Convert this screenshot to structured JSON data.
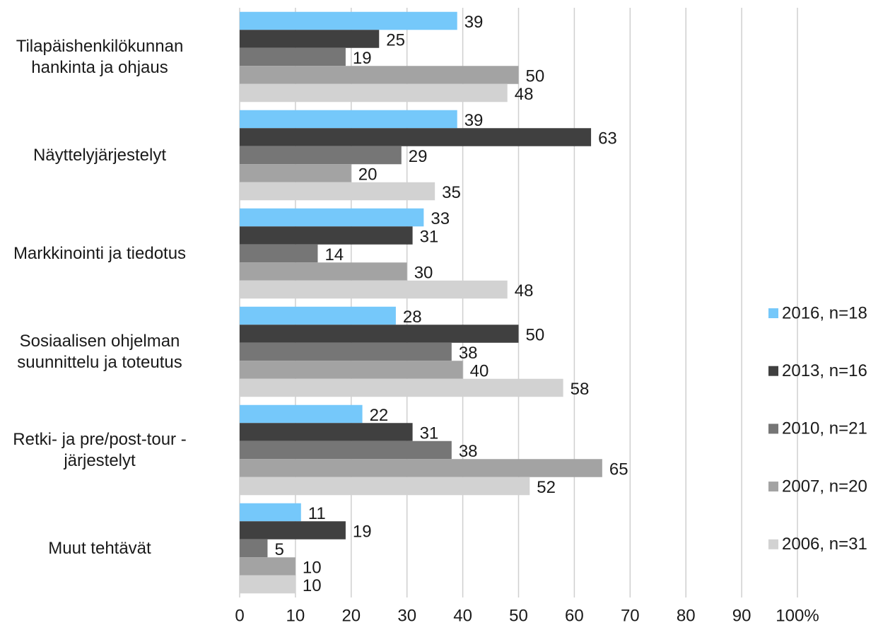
{
  "chart_data": {
    "type": "bar",
    "orientation": "horizontal",
    "categories": [
      "Tilapäishenkilökunnan\nhankinta ja ohjaus",
      "Näyttelyjärjestelyt",
      "Markkinointi ja tiedotus",
      "Sosiaalisen ohjelman\nsuunnittelu ja toteutus",
      "Retki- ja pre/post-tour -\njärjestelyt",
      "Muut tehtävät"
    ],
    "series": [
      {
        "name": "2016, n=18",
        "color": "#75c8fa",
        "values": [
          39,
          39,
          33,
          28,
          22,
          11
        ]
      },
      {
        "name": "2013, n=16",
        "color": "#404040",
        "values": [
          25,
          63,
          31,
          50,
          31,
          19
        ]
      },
      {
        "name": "2010, n=21",
        "color": "#767676",
        "values": [
          19,
          29,
          14,
          38,
          38,
          5
        ]
      },
      {
        "name": "2007, n=20",
        "color": "#a3a3a3",
        "values": [
          50,
          20,
          30,
          40,
          65,
          10
        ]
      },
      {
        "name": "2006, n=31",
        "color": "#d2d2d2",
        "values": [
          48,
          35,
          48,
          58,
          52,
          10
        ]
      }
    ],
    "xlim": [
      0,
      100
    ],
    "xticks": [
      0,
      10,
      20,
      30,
      40,
      50,
      60,
      70,
      80,
      90,
      {
        "value": 100,
        "label": "100%"
      }
    ],
    "grid": true,
    "legend": "right"
  }
}
